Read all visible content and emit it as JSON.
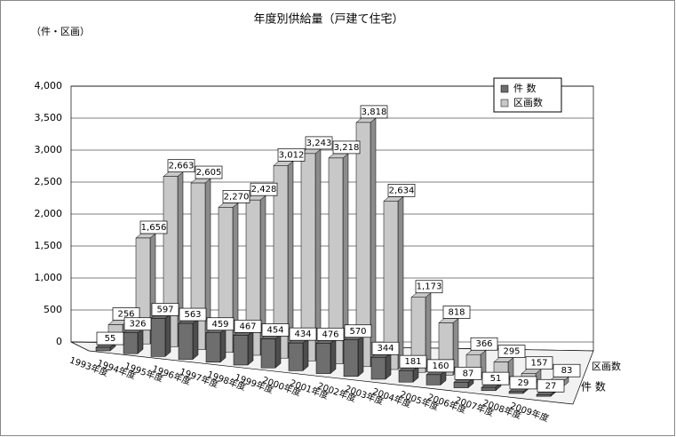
{
  "chart_data": {
    "type": "bar3d",
    "title": "年度別供給量（戸建て住宅）",
    "y_unit": "（件・区画）",
    "categories": [
      "1993年度",
      "1994年度",
      "1995年度",
      "1996年度",
      "1997年度",
      "1998年度",
      "1999年度",
      "2000年度",
      "2001年度",
      "2002年度",
      "2003年度",
      "2004年度",
      "2005年度",
      "2006年度",
      "2007年度",
      "2008年度",
      "2009年度"
    ],
    "series": [
      {
        "name": "件 数",
        "color": "#6e6e6e",
        "values": [
          55,
          326,
          597,
          563,
          459,
          467,
          454,
          434,
          476,
          570,
          344,
          181,
          160,
          87,
          51,
          29,
          27
        ]
      },
      {
        "name": "区画数",
        "color": "#c8c8c8",
        "values": [
          256,
          1656,
          2663,
          2605,
          2270,
          2428,
          3012,
          3243,
          3218,
          3818,
          2634,
          1173,
          818,
          366,
          295,
          157,
          83
        ],
        "value_labels": [
          "256",
          "1,656",
          "2,663",
          "2,605",
          "2,270",
          "2,428",
          "3,012",
          "3,243",
          "3,218",
          "3,818",
          "2,634",
          "1,173",
          "818",
          "366",
          "295",
          "157",
          "83"
        ]
      }
    ],
    "ylim": [
      0,
      4000
    ],
    "yticks": [
      0,
      500,
      {
        "value": 1000,
        "label": "1,000"
      },
      {
        "value": 1500,
        "label": "1,500"
      },
      {
        "value": 2000,
        "label": "2,000"
      },
      {
        "value": 2500,
        "label": "2,500"
      },
      {
        "value": 3000,
        "label": "3,000"
      },
      {
        "value": 3500,
        "label": "3,500"
      },
      {
        "value": 4000,
        "label": "4,000"
      }
    ],
    "grid": true,
    "legend": "top-right"
  }
}
